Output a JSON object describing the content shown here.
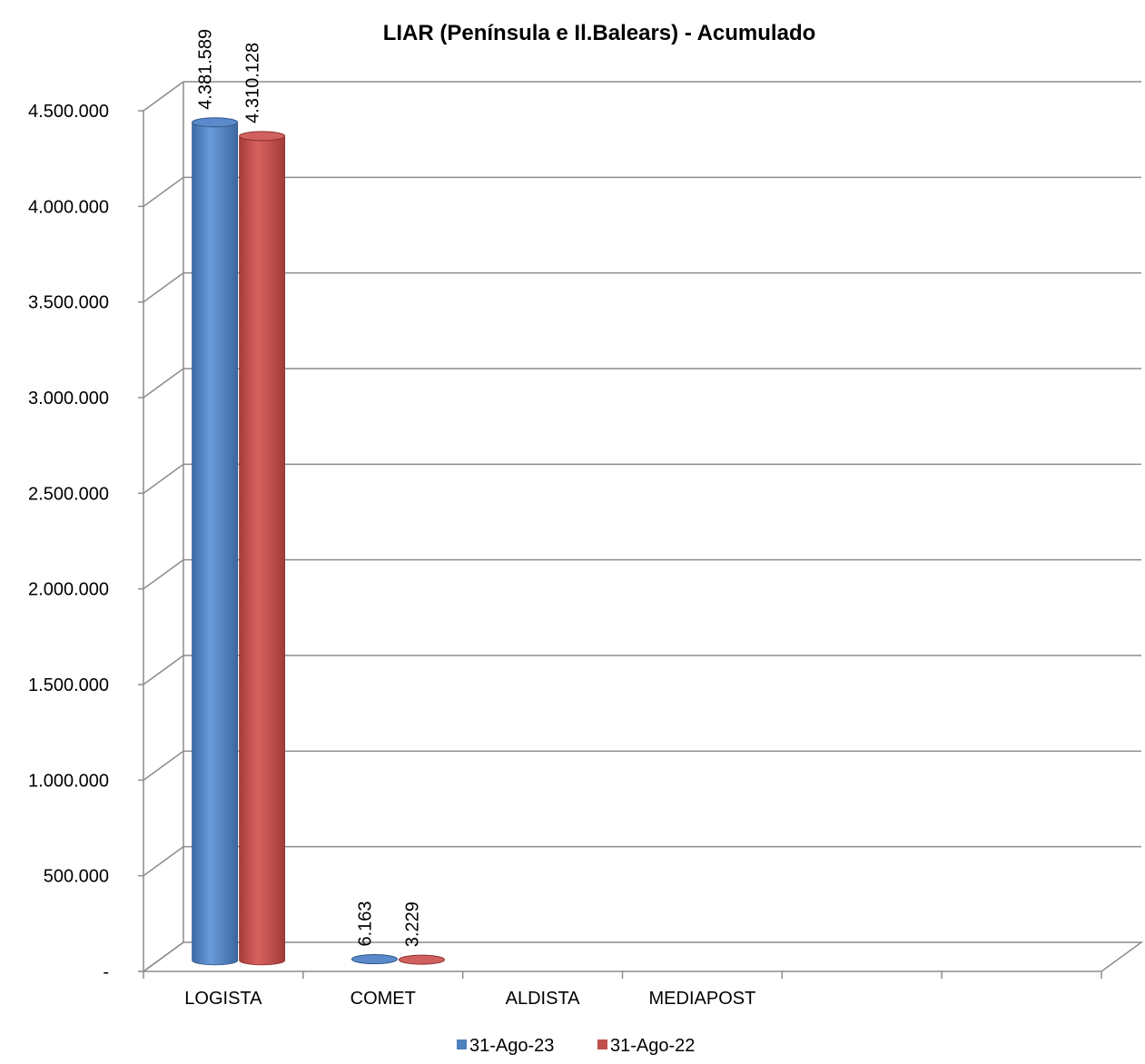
{
  "chart_data": {
    "type": "bar",
    "title": "LIAR  (Península e Il.Balears) - Acumulado",
    "categories": [
      "LOGISTA",
      "COMET",
      "ALDISTA",
      "MEDIAPOST",
      "",
      ""
    ],
    "series": [
      {
        "name": "31-Ago-23",
        "values": [
          4381589,
          6163,
          null,
          null,
          null,
          null
        ],
        "value_labels": [
          "4.381.589",
          "6.163",
          "",
          "",
          "",
          ""
        ],
        "color": "#4F81BD"
      },
      {
        "name": "31-Ago-22",
        "values": [
          4310128,
          3229,
          null,
          null,
          null,
          null
        ],
        "value_labels": [
          "4.310.128",
          "3.229",
          "",
          "",
          "",
          ""
        ],
        "color": "#C0504D"
      }
    ],
    "ylim": [
      0,
      4500000
    ],
    "yticks": [
      0,
      500000,
      1000000,
      1500000,
      2000000,
      2500000,
      3000000,
      3500000,
      4000000,
      4500000
    ],
    "ytick_labels": [
      "-",
      "500.000",
      "1.000.000",
      "1.500.000",
      "2.000.000",
      "2.500.000",
      "3.000.000",
      "3.500.000",
      "4.000.000",
      "4.500.000"
    ],
    "xlabel": "",
    "ylabel": "",
    "grid": true,
    "legend_position": "bottom",
    "style": "3d-cylinder"
  }
}
